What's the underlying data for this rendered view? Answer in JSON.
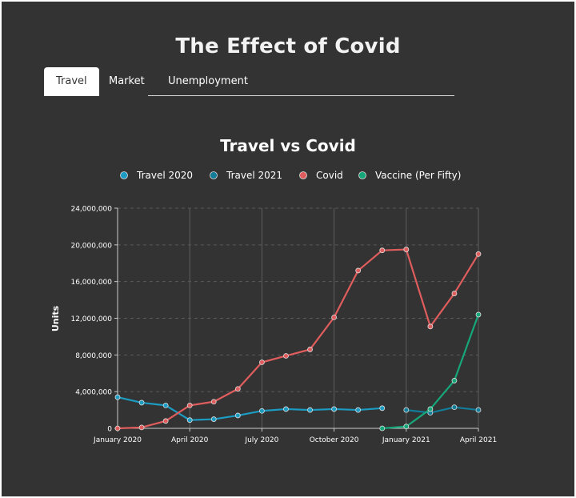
{
  "page": {
    "title": "The Effect of Covid"
  },
  "tabs": [
    {
      "label": "Travel",
      "active": true
    },
    {
      "label": "Market",
      "active": false
    },
    {
      "label": "Unemployment",
      "active": false
    }
  ],
  "chart_data": {
    "type": "line",
    "title": "Travel vs Covid",
    "xlabel": "",
    "ylabel": "Units",
    "ylim": [
      0,
      24000000
    ],
    "y_ticks": [
      0,
      4000000,
      8000000,
      12000000,
      16000000,
      20000000,
      24000000
    ],
    "y_tick_labels": [
      "0",
      "4,000,000",
      "8,000,000",
      "12,000,000",
      "16,000,000",
      "20,000,000",
      "24,000,000"
    ],
    "x_ticks": [
      "2020-01",
      "2020-04",
      "2020-07",
      "2020-10",
      "2021-01",
      "2021-04"
    ],
    "x_tick_labels": [
      "January 2020",
      "April 2020",
      "July 2020",
      "October 2020",
      "January 2021",
      "April 2021"
    ],
    "grid": true,
    "legend_position": "top-center",
    "series": [
      {
        "name": "Travel 2020",
        "color": "#1c9cc3",
        "x": [
          "2020-01",
          "2020-02",
          "2020-03",
          "2020-04",
          "2020-05",
          "2020-06",
          "2020-07",
          "2020-08",
          "2020-09",
          "2020-10",
          "2020-11",
          "2020-12"
        ],
        "values": [
          3400000,
          2800000,
          2500000,
          900000,
          1000000,
          1400000,
          1900000,
          2100000,
          2000000,
          2100000,
          2000000,
          2200000
        ]
      },
      {
        "name": "Travel 2021",
        "color": "#127c99",
        "x": [
          "2021-01",
          "2021-02",
          "2021-03",
          "2021-04"
        ],
        "values": [
          2000000,
          1700000,
          2300000,
          2000000
        ]
      },
      {
        "name": "Covid",
        "color": "#e05d5d",
        "x": [
          "2020-01",
          "2020-02",
          "2020-03",
          "2020-04",
          "2020-05",
          "2020-06",
          "2020-07",
          "2020-08",
          "2020-09",
          "2020-10",
          "2020-11",
          "2020-12",
          "2021-01",
          "2021-02",
          "2021-03",
          "2021-04"
        ],
        "values": [
          0,
          100000,
          800000,
          2500000,
          2900000,
          4300000,
          7200000,
          7900000,
          8600000,
          12100000,
          17200000,
          19400000,
          19500000,
          11100000,
          14700000,
          19000000
        ]
      },
      {
        "name": "Vaccine (Per Fifty)",
        "color": "#15a67a",
        "x": [
          "2020-12",
          "2021-01",
          "2021-02",
          "2021-03",
          "2021-04"
        ],
        "values": [
          0,
          200000,
          2100000,
          5200000,
          12400000
        ]
      }
    ]
  }
}
